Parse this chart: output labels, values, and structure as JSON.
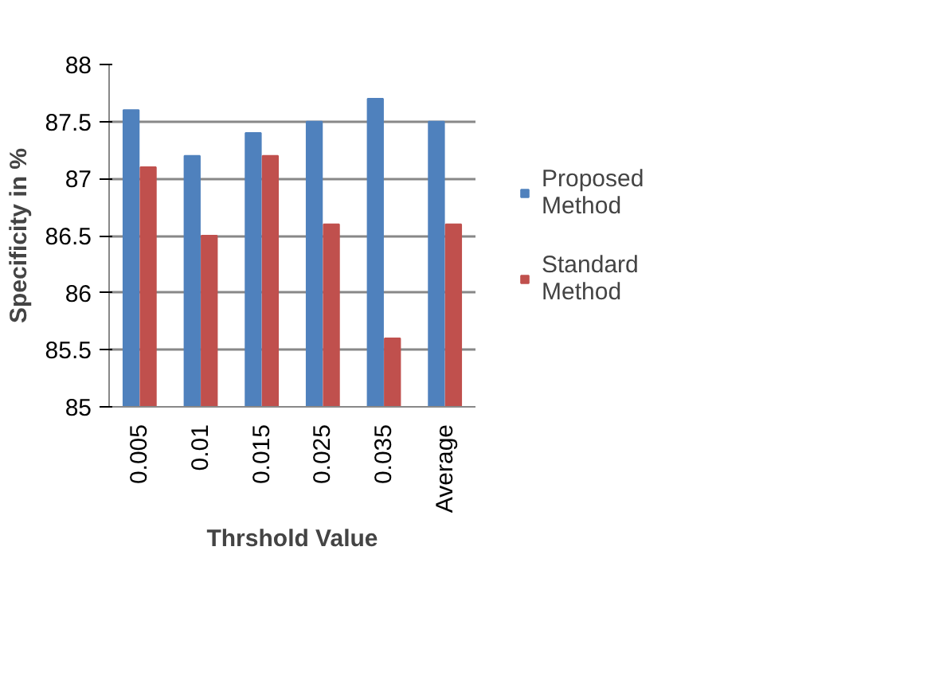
{
  "chart_data": {
    "type": "bar",
    "xlabel": "Thrshold Value",
    "ylabel": "Specificity in %",
    "categories": [
      "0.005",
      "0.01",
      "0.015",
      "0.025",
      "0.035",
      "Average"
    ],
    "series": [
      {
        "name": "Proposed Method",
        "color": "#4f81bd",
        "values": [
          87.6,
          87.2,
          87.4,
          87.5,
          87.7,
          87.5
        ]
      },
      {
        "name": "Standard Method",
        "color": "#c0504d",
        "values": [
          87.1,
          86.5,
          87.2,
          86.6,
          85.6,
          86.6
        ]
      }
    ],
    "ylim": [
      85,
      88
    ],
    "yticks": [
      85,
      85.5,
      86,
      86.5,
      87,
      87.5,
      88
    ],
    "grid": "y",
    "legend": "right"
  }
}
